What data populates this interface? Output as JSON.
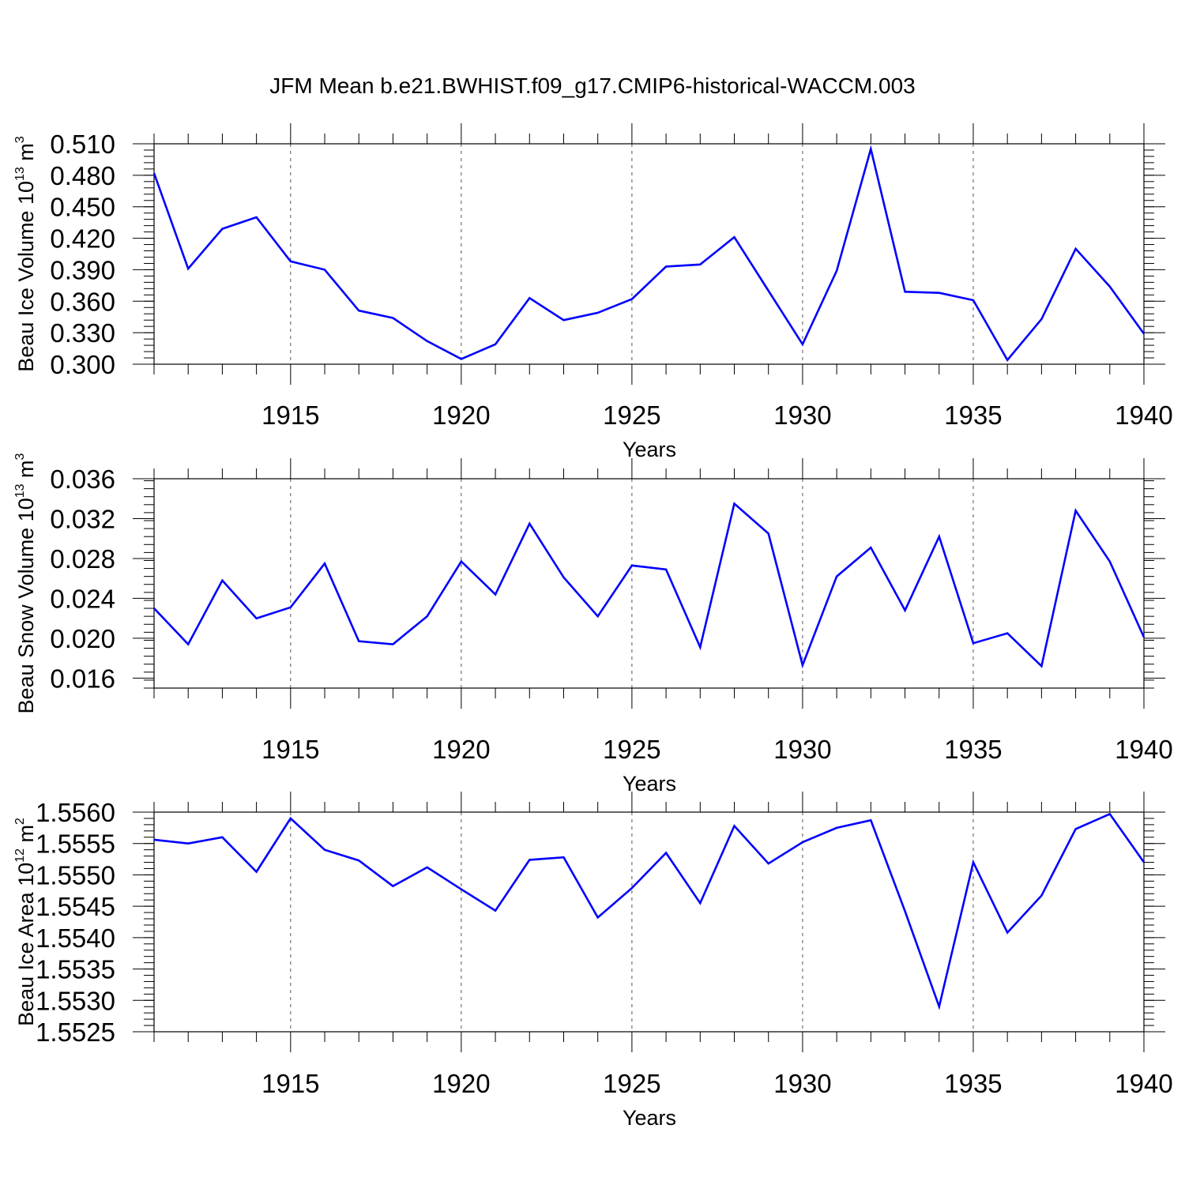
{
  "title": "JFM Mean b.e21.BWHIST.f09_g17.CMIP6-historical-WACCM.003",
  "chart_data": [
    {
      "type": "line",
      "ylabel": {
        "text": "Beau Ice Volume 10",
        "exp": "13",
        "unit": " m",
        "unit_exp": "3"
      },
      "xlabel": "Years",
      "x": [
        1911,
        1912,
        1913,
        1914,
        1915,
        1916,
        1917,
        1918,
        1919,
        1920,
        1921,
        1922,
        1923,
        1924,
        1925,
        1926,
        1927,
        1928,
        1929,
        1930,
        1931,
        1932,
        1933,
        1934,
        1935,
        1936,
        1937,
        1938,
        1939,
        1940
      ],
      "values": [
        0.482,
        0.391,
        0.429,
        0.44,
        0.398,
        0.39,
        0.351,
        0.344,
        0.322,
        0.305,
        0.319,
        0.363,
        0.342,
        0.349,
        0.362,
        0.393,
        0.395,
        0.421,
        0.37,
        0.319,
        0.389,
        0.505,
        0.369,
        0.368,
        0.361,
        0.304,
        0.343,
        0.41,
        0.374,
        0.329
      ],
      "xlim": [
        1911,
        1940
      ],
      "ylim": [
        0.3,
        0.51
      ],
      "yticks": [
        "0.300",
        "0.330",
        "0.360",
        "0.390",
        "0.420",
        "0.450",
        "0.480",
        "0.510"
      ],
      "yminor": 0.006,
      "xticks": [
        "1915",
        "1920",
        "1925",
        "1930",
        "1935",
        "1940"
      ],
      "grid": "vertical dashed at major x ticks",
      "line_color": "#0000ff"
    },
    {
      "type": "line",
      "ylabel": {
        "text": "Beau Snow Volume 10",
        "exp": "13",
        "unit": " m",
        "unit_exp": "3"
      },
      "xlabel": "Years",
      "x": [
        1911,
        1912,
        1913,
        1914,
        1915,
        1916,
        1917,
        1918,
        1919,
        1920,
        1921,
        1922,
        1923,
        1924,
        1925,
        1926,
        1927,
        1928,
        1929,
        1930,
        1931,
        1932,
        1933,
        1934,
        1935,
        1936,
        1937,
        1938,
        1939,
        1940
      ],
      "values": [
        0.023,
        0.0194,
        0.0258,
        0.022,
        0.0231,
        0.0275,
        0.0197,
        0.0194,
        0.0222,
        0.0277,
        0.0244,
        0.0315,
        0.0261,
        0.0222,
        0.0273,
        0.0269,
        0.0191,
        0.0335,
        0.0305,
        0.0173,
        0.0262,
        0.0291,
        0.0228,
        0.0302,
        0.0195,
        0.0205,
        0.0172,
        0.0328,
        0.0277,
        0.0201
      ],
      "xlim": [
        1911,
        1940
      ],
      "ylim": [
        0.015,
        0.036
      ],
      "yticks": [
        "0.016",
        "0.020",
        "0.024",
        "0.028",
        "0.032",
        "0.036"
      ],
      "yminor": 0.0008,
      "xticks": [
        "1915",
        "1920",
        "1925",
        "1930",
        "1935",
        "1940"
      ],
      "grid": "vertical dashed at major x ticks",
      "line_color": "#0000ff"
    },
    {
      "type": "line",
      "ylabel": {
        "text": "Beau Ice Area 10",
        "exp": "12",
        "unit": " m",
        "unit_exp": "2"
      },
      "xlabel": "Years",
      "x": [
        1911,
        1912,
        1913,
        1914,
        1915,
        1916,
        1917,
        1918,
        1919,
        1920,
        1921,
        1922,
        1923,
        1924,
        1925,
        1926,
        1927,
        1928,
        1929,
        1930,
        1931,
        1932,
        1933,
        1934,
        1935,
        1936,
        1937,
        1938,
        1939,
        1940
      ],
      "values": [
        1.55556,
        1.5555,
        1.5556,
        1.55505,
        1.5559,
        1.5554,
        1.55523,
        1.55482,
        1.55512,
        1.55477,
        1.55443,
        1.55524,
        1.55528,
        1.55432,
        1.55479,
        1.55535,
        1.55455,
        1.55578,
        1.55518,
        1.55552,
        1.55575,
        1.55587,
        1.55442,
        1.5529,
        1.5552,
        1.55408,
        1.55467,
        1.55573,
        1.55597,
        1.5552
      ],
      "xlim": [
        1911,
        1940
      ],
      "ylim": [
        1.5525,
        1.556
      ],
      "yticks": [
        "1.5525",
        "1.5530",
        "1.5535",
        "1.5540",
        "1.5545",
        "1.5550",
        "1.5555",
        "1.5560"
      ],
      "yminor": 0.0001,
      "xticks": [
        "1915",
        "1920",
        "1925",
        "1930",
        "1935",
        "1940"
      ],
      "grid": "vertical dashed at major x ticks",
      "line_color": "#0000ff"
    }
  ]
}
